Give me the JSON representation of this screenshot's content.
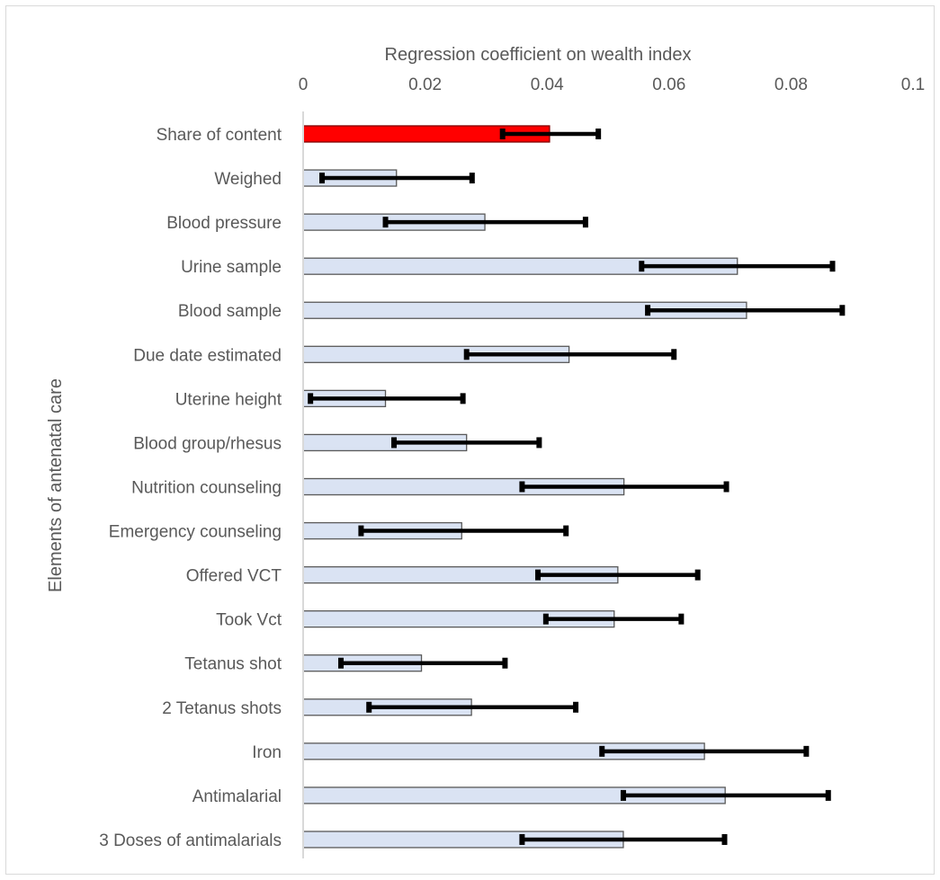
{
  "chart_data": {
    "type": "bar",
    "orientation": "horizontal",
    "xlabel": "Regression coefficient on wealth index",
    "ylabel": "Elements of antenatal care",
    "xlim": [
      0,
      0.1
    ],
    "x_ticks": [
      0,
      0.02,
      0.04,
      0.06,
      0.08,
      0.1
    ],
    "x_tick_labels": [
      "0",
      "0.02",
      "0.04",
      "0.06",
      "0.08",
      "0.1"
    ],
    "x_axis_position": "top",
    "grid": false,
    "legend": "none",
    "categories": [
      "Share of content",
      "Weighed",
      "Blood pressure",
      "Urine sample",
      "Blood sample",
      "Due date estimated",
      "Uterine height",
      "Blood group/rhesus",
      "Nutrition counseling",
      "Emergency counseling",
      "Offered VCT",
      "Took Vct",
      "Tetanus shot",
      "2 Tetanus shots",
      "Iron",
      "Antimalarial",
      "3 Doses of antimalarials"
    ],
    "values": [
      0.0404,
      0.0153,
      0.0298,
      0.0712,
      0.0727,
      0.0436,
      0.0135,
      0.0268,
      0.0526,
      0.026,
      0.0516,
      0.051,
      0.0194,
      0.0276,
      0.0658,
      0.0692,
      0.0525
    ],
    "error_low": [
      0.0327,
      0.0031,
      0.0135,
      0.0555,
      0.0565,
      0.0268,
      0.0012,
      0.0149,
      0.0359,
      0.0095,
      0.0385,
      0.0398,
      0.0062,
      0.0108,
      0.049,
      0.0525,
      0.0359
    ],
    "error_high": [
      0.0484,
      0.0277,
      0.0463,
      0.0868,
      0.0884,
      0.0608,
      0.0262,
      0.0387,
      0.0694,
      0.0431,
      0.0647,
      0.062,
      0.0331,
      0.0447,
      0.0825,
      0.0861,
      0.0691
    ],
    "colors": {
      "highlight_bar": "#ff0000",
      "bar": "#dae3f3",
      "bar_border": "#595959",
      "error_bar": "#000000",
      "axis_line": "#d9d9d9",
      "text": "#595959"
    }
  }
}
